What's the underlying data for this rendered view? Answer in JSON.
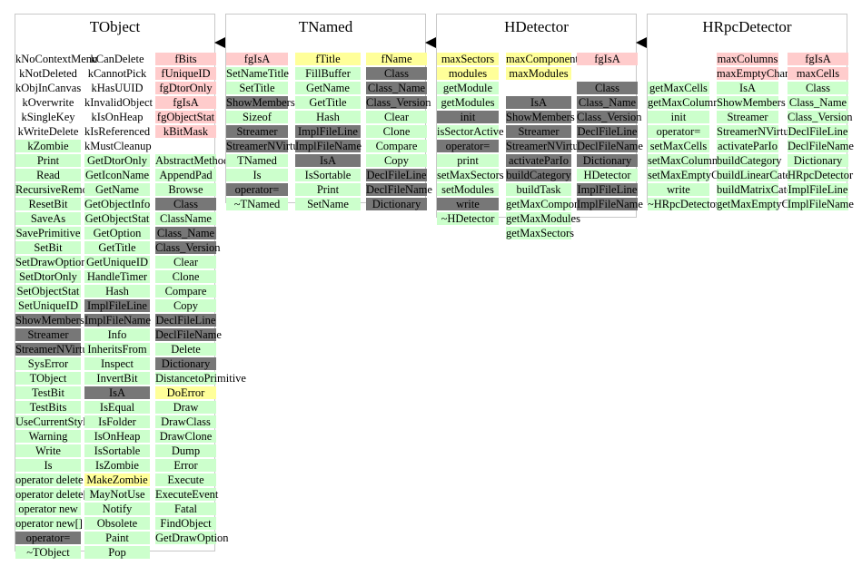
{
  "colors": {
    "method_bg": "#ccffcc",
    "member_bg": "#ffcccc",
    "highlight_bg": "#ffff99",
    "inherited_bg": "#777777"
  },
  "classes": [
    {
      "name": "TObject",
      "columns": [
        [
          "kNoContextMenu|w",
          "kNotDeleted|w",
          "kObjInCanvas|w",
          "kOverwrite|w",
          "kSingleKey|w",
          "kWriteDelete|w",
          "kZombie|g",
          "Print|g",
          "Read|g",
          "RecursiveRemove|g",
          "ResetBit|g",
          "SaveAs|g",
          "SavePrimitive|g",
          "SetBit|g",
          "SetDrawOption|g",
          "SetDtorOnly|g",
          "SetObjectStat|g",
          "SetUniqueID|g",
          "ShowMembers|d",
          "Streamer|d",
          "StreamerNVirtual|d",
          "SysError|g",
          "TObject|g",
          "TestBit|g",
          "TestBits|g",
          "UseCurrentStyle|g",
          "Warning|g",
          "Write|g",
          "Is|g",
          "operator delete|g",
          "operator delete[]|g",
          "operator new|g",
          "operator new[]|g",
          "operator=|d",
          "~TObject|g"
        ],
        [
          "kCanDelete|w",
          "kCannotPick|w",
          "kHasUUID|w",
          "kInvalidObject|w",
          "kIsOnHeap|w",
          "kIsReferenced|w",
          "kMustCleanup|w",
          "GetDtorOnly|g",
          "GetIconName|g",
          "GetName|g",
          "GetObjectInfo|g",
          "GetObjectStat|g",
          "GetOption|g",
          "GetTitle|g",
          "GetUniqueID|g",
          "HandleTimer|g",
          "Hash|g",
          "ImplFileLine|d",
          "ImplFileName|d",
          "Info|g",
          "InheritsFrom|g",
          "Inspect|g",
          "InvertBit|g",
          "IsA|d",
          "IsEqual|g",
          "IsFolder|g",
          "IsOnHeap|g",
          "IsSortable|g",
          "IsZombie|g",
          "MakeZombie|y",
          "MayNotUse|g",
          "Notify|g",
          "Obsolete|g",
          "Paint|g",
          "Pop|g"
        ],
        [
          "fBits|p",
          "fUniqueID|p",
          "fgDtorOnly|p",
          "fgIsA|p",
          "fgObjectStat|p",
          "kBitMask|p",
          "",
          "AbstractMethod|g",
          "AppendPad|g",
          "Browse|g",
          "Class|d",
          "ClassName|g",
          "Class_Name|d",
          "Class_Version|d",
          "Clear|g",
          "Clone|g",
          "Compare|g",
          "Copy|g",
          "DeclFileLine|d",
          "DeclFileName|d",
          "Delete|g",
          "Dictionary|d",
          "DistancetoPrimitive|g",
          "DoError|y",
          "Draw|g",
          "DrawClass|g",
          "DrawClone|g",
          "Dump|g",
          "Error|g",
          "Execute|g",
          "ExecuteEvent|g",
          "Fatal|g",
          "FindObject|g",
          "GetDrawOption|g"
        ]
      ]
    },
    {
      "name": "TNamed",
      "columns": [
        [
          "fgIsA|p",
          "SetNameTitle|g",
          "SetTitle|g",
          "ShowMembers|d",
          "Sizeof|g",
          "Streamer|d",
          "StreamerNVirtual|d",
          "TNamed|g",
          "Is|g",
          "operator=|d",
          "~TNamed|g"
        ],
        [
          "fTitle|y",
          "FillBuffer|g",
          "GetName|g",
          "GetTitle|g",
          "Hash|g",
          "ImplFileLine|d",
          "ImplFileName|d",
          "IsA|d",
          "IsSortable|g",
          "Print|g",
          "SetName|g"
        ],
        [
          "fName|y",
          "Class|d",
          "Class_Name|d",
          "Class_Version|d",
          "Clear|g",
          "Clone|g",
          "Compare|g",
          "Copy|g",
          "DeclFileLine|d",
          "DeclFileName|d",
          "Dictionary|d"
        ]
      ]
    },
    {
      "name": "HDetector",
      "columns": [
        [
          "maxSectors|y",
          "modules|y",
          "getModule|g",
          "getModules|g",
          "init|d",
          "isSectorActive|g",
          "operator=|d",
          "print|g",
          "setMaxSectors|g",
          "setModules|g",
          "write|d",
          "~HDetector|g"
        ],
        [
          "maxComponents|y",
          "maxModules|y",
          "",
          "IsA|d",
          "ShowMembers|d",
          "Streamer|d",
          "StreamerNVirtual|d",
          "activateParIo|d",
          "buildCategory|d",
          "buildTask|g",
          "getMaxComponents|g",
          "getMaxModules|g",
          "getMaxSectors|g"
        ],
        [
          "fgIsA|p",
          "",
          "Class|d",
          "Class_Name|d",
          "Class_Version|d",
          "DeclFileLine|d",
          "DeclFileName|d",
          "Dictionary|d",
          "HDetector|g",
          "ImplFileLine|d",
          "ImplFileName|d"
        ]
      ]
    },
    {
      "name": "HRpcDetector",
      "columns": [
        [
          "",
          "",
          "getMaxCells|g",
          "getMaxColumns|g",
          "init|g",
          "operator=|g",
          "setMaxCells|g",
          "setMaxColumns|g",
          "setMaxEmptyChannels|g",
          "write|g",
          "~HRpcDetector|g"
        ],
        [
          "maxColumns|p",
          "maxEmptyChannels|p",
          "IsA|g",
          "ShowMembers|g",
          "Streamer|g",
          "StreamerNVirtual|g",
          "activateParIo|g",
          "buildCategory|g",
          "buildLinearCategory|g",
          "buildMatrixCategory|g",
          "getMaxEmptyChannels|g"
        ],
        [
          "fgIsA|p",
          "maxCells|p",
          "Class|g",
          "Class_Name|g",
          "Class_Version|g",
          "DeclFileLine|g",
          "DeclFileName|g",
          "Dictionary|g",
          "HRpcDetector|g",
          "ImplFileLine|g",
          "ImplFileName|g"
        ]
      ]
    }
  ]
}
